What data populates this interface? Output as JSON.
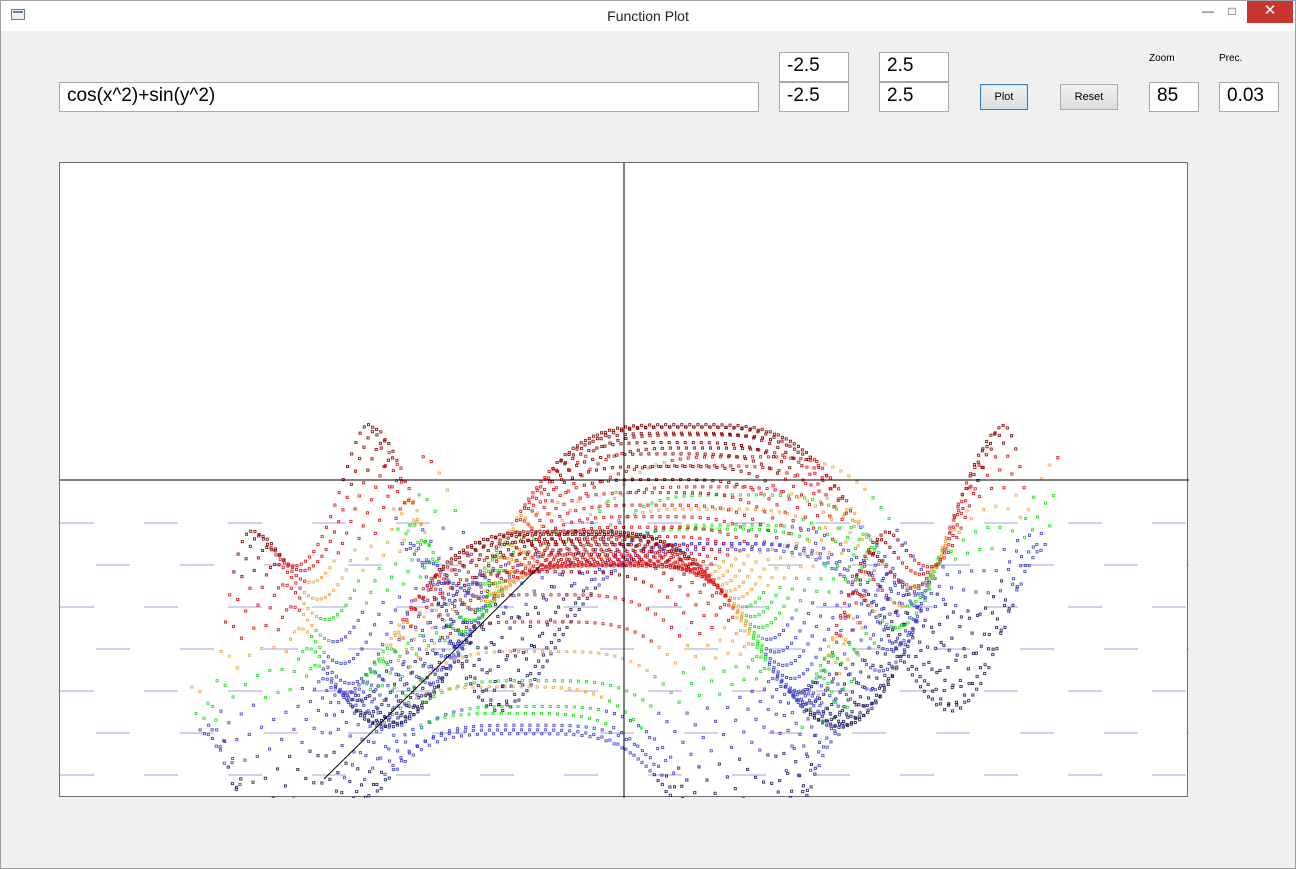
{
  "window": {
    "title": "Function Plot"
  },
  "controls": {
    "function_expr": "cos(x^2)+sin(y^2)",
    "x_min": "-2.5",
    "x_max": "2.5",
    "y_min": "-2.5",
    "y_max": "2.5",
    "plot_label": "Plot",
    "reset_label": "Reset",
    "zoom_label": "Zoom",
    "zoom_value": "85",
    "prec_label": "Prec.",
    "prec_value": "0.03"
  },
  "plot": {
    "function": "cos(x^2)+sin(y^2)",
    "x_range": [
      -2.5,
      2.5
    ],
    "y_range": [
      -2.5,
      2.5
    ],
    "zoom": 85,
    "precision": 0.03,
    "colors": {
      "high": "#e01010",
      "high_dark": "#8b0000",
      "upper_mid": "#f0a040",
      "mid": "#18e018",
      "low": "#4040d8",
      "low_dark": "#202060",
      "axis": "#000000",
      "grid": "#a0a0e0"
    }
  }
}
